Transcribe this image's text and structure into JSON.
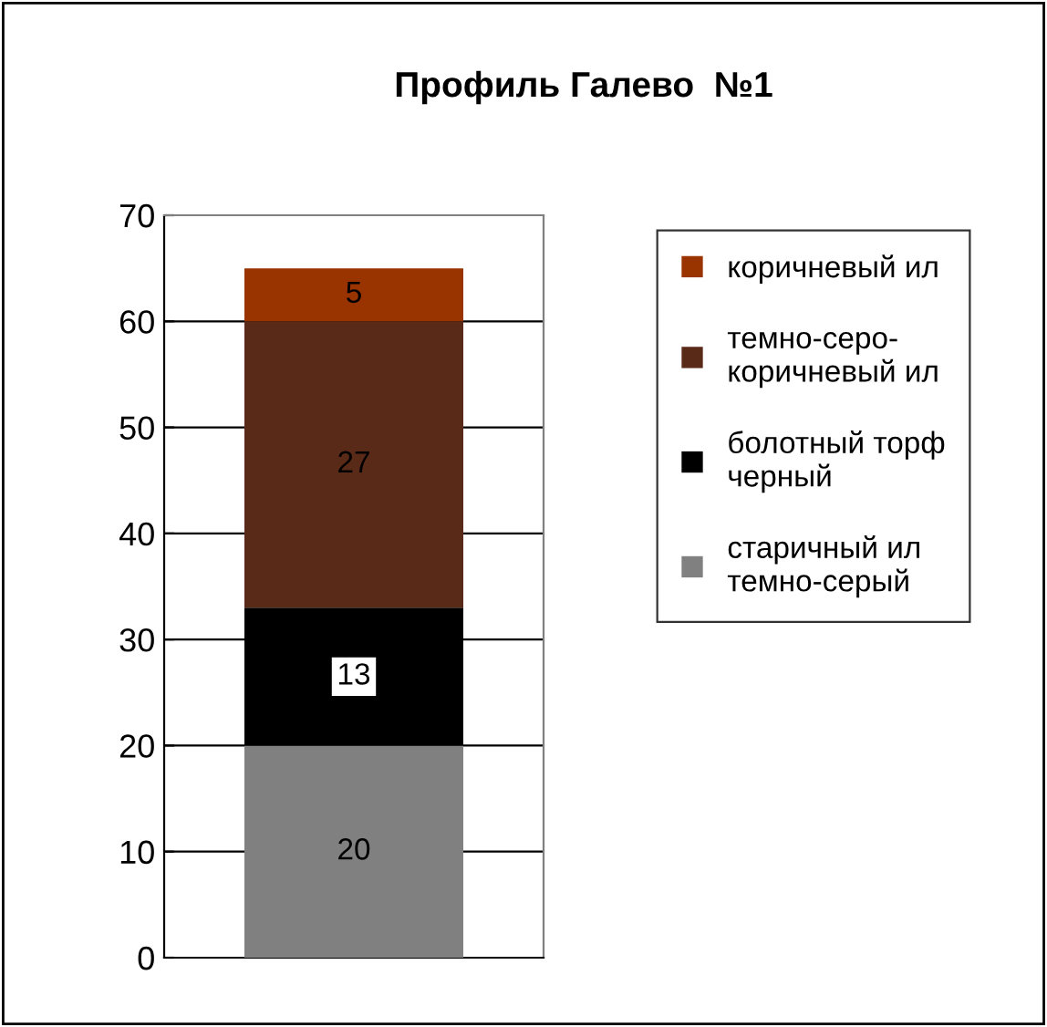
{
  "chart_data": {
    "type": "bar",
    "title": "Профиль Галево  №1",
    "categories": [
      null
    ],
    "stacked": true,
    "series": [
      {
        "name": "старичный ил\nтемно-серый",
        "color": "#808080",
        "values": [
          20
        ]
      },
      {
        "name": "болотный торф\nчерный",
        "color": "#000000",
        "values": [
          13
        ]
      },
      {
        "name": "темно-серо-\nкоричневый ил",
        "color": "#5a2a18",
        "values": [
          27
        ]
      },
      {
        "name": "коричневый ил",
        "color": "#993300",
        "values": [
          5
        ]
      }
    ],
    "ylim": [
      0,
      70
    ],
    "yticks": [
      0,
      10,
      20,
      30,
      40,
      50,
      60,
      70
    ],
    "grid": "y",
    "legend": "right",
    "data_labels": true
  }
}
